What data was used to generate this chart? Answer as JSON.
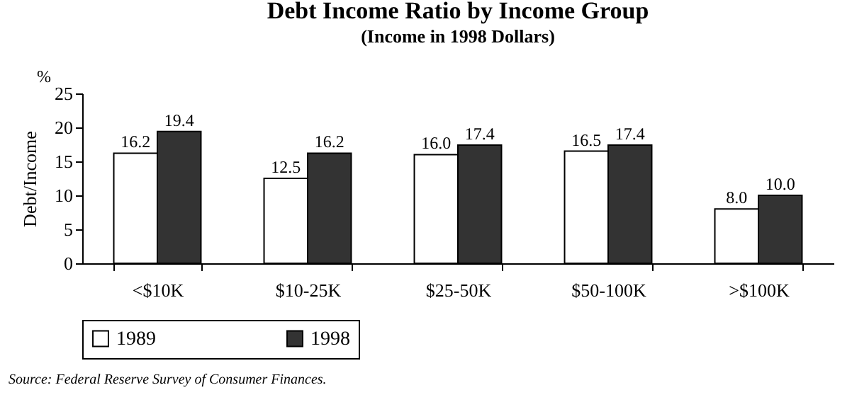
{
  "chart_data": {
    "type": "bar",
    "title": "Debt Income Ratio by Income Group",
    "subtitle": "(Income in 1998 Dollars)",
    "ylabel": "Debt/Income",
    "categories": [
      "<$10K",
      "$10-25K",
      "$25-50K",
      "$50-100K",
      ">$100K"
    ],
    "series": [
      {
        "name": "1989",
        "color": "#ffffff",
        "values": [
          16.2,
          12.5,
          16.0,
          16.5,
          8.0
        ],
        "value_labels": [
          "16.2",
          "12.5",
          "16.0",
          "16.5",
          "8.0"
        ]
      },
      {
        "name": "1998",
        "color": "#333333",
        "values": [
          19.4,
          16.2,
          17.4,
          17.4,
          10.0
        ],
        "value_labels": [
          "19.4",
          "16.2",
          "17.4",
          "17.4",
          "10.0"
        ]
      }
    ],
    "ylim": [
      0,
      25
    ],
    "yticks": [
      0,
      5,
      10,
      15,
      20,
      25
    ],
    "grid": false,
    "legend": "bottom",
    "annotations": [
      "%",
      "Source: Federal Reserve Survey of Consumer Finances."
    ]
  }
}
